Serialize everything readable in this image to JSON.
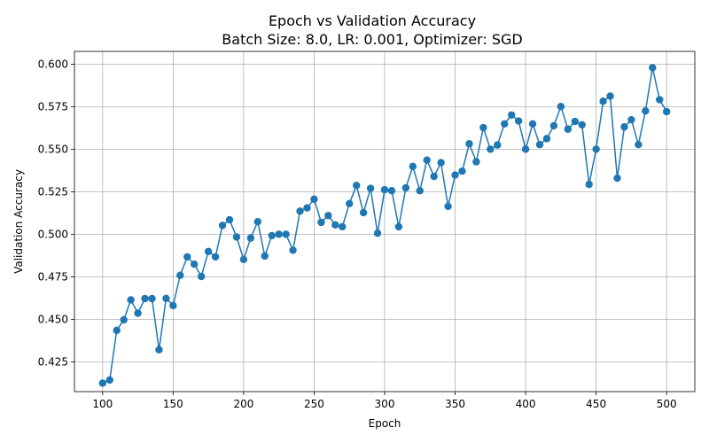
{
  "chart_data": {
    "type": "line",
    "title": "Epoch vs Validation Accuracy",
    "subtitle": "Batch Size: 8.0, LR: 0.001, Optimizer: SGD",
    "xlabel": "Epoch",
    "ylabel": "Validation Accuracy",
    "xlim": [
      80,
      520
    ],
    "ylim": [
      0.4075,
      0.6075
    ],
    "xticks": [
      100,
      150,
      200,
      250,
      300,
      350,
      400,
      450,
      500
    ],
    "xtick_labels": [
      "100",
      "150",
      "200",
      "250",
      "300",
      "350",
      "400",
      "450",
      "500"
    ],
    "yticks": [
      0.425,
      0.45,
      0.475,
      0.5,
      0.525,
      0.55,
      0.575,
      0.6
    ],
    "ytick_labels": [
      "0.425",
      "0.450",
      "0.475",
      "0.500",
      "0.525",
      "0.550",
      "0.575",
      "0.600"
    ],
    "grid": true,
    "color": "#1f77b4",
    "x": [
      100,
      105,
      110,
      115,
      120,
      125,
      130,
      135,
      140,
      145,
      150,
      155,
      160,
      165,
      170,
      175,
      180,
      185,
      190,
      195,
      200,
      205,
      210,
      215,
      220,
      225,
      230,
      235,
      240,
      245,
      250,
      255,
      260,
      265,
      270,
      275,
      280,
      285,
      290,
      295,
      300,
      305,
      310,
      315,
      320,
      325,
      330,
      335,
      340,
      345,
      350,
      355,
      360,
      365,
      370,
      375,
      380,
      385,
      390,
      395,
      400,
      405,
      410,
      415,
      420,
      425,
      430,
      435,
      440,
      445,
      450,
      455,
      460,
      465,
      470,
      475,
      480,
      485,
      490,
      495,
      500
    ],
    "y": [
      0.4125,
      0.4143,
      0.4435,
      0.4497,
      0.4614,
      0.4536,
      0.4622,
      0.4622,
      0.4321,
      0.4623,
      0.4581,
      0.4759,
      0.4867,
      0.4824,
      0.4752,
      0.4899,
      0.4867,
      0.5052,
      0.5085,
      0.4984,
      0.4852,
      0.4978,
      0.5074,
      0.4872,
      0.4992,
      0.5,
      0.5,
      0.4906,
      0.5136,
      0.5155,
      0.5206,
      0.507,
      0.511,
      0.5055,
      0.5044,
      0.518,
      0.5287,
      0.5127,
      0.527,
      0.5006,
      0.5262,
      0.5256,
      0.5044,
      0.5273,
      0.5399,
      0.5256,
      0.5436,
      0.534,
      0.5421,
      0.5164,
      0.5348,
      0.5371,
      0.5532,
      0.5426,
      0.5627,
      0.55,
      0.5525,
      0.5649,
      0.5701,
      0.5666,
      0.55,
      0.5649,
      0.5527,
      0.5562,
      0.5638,
      0.5751,
      0.5618,
      0.5663,
      0.5643,
      0.5293,
      0.55,
      0.5782,
      0.5812,
      0.533,
      0.5631,
      0.5673,
      0.5527,
      0.5725,
      0.5979,
      0.5791,
      0.5721
    ]
  }
}
